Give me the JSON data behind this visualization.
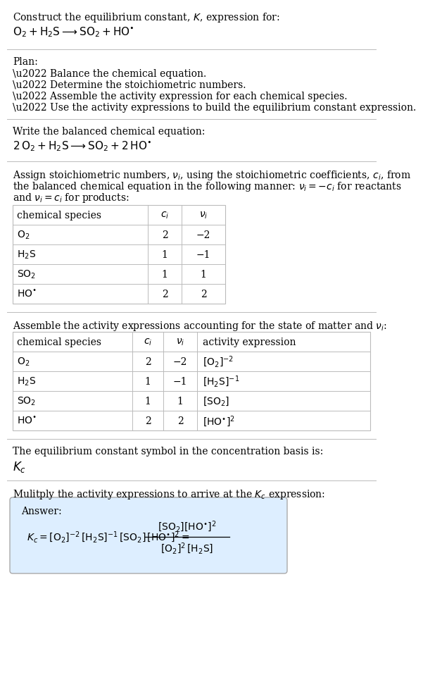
{
  "title_line1": "Construct the equilibrium constant, $K$, expression for:",
  "title_line2": "$\\mathrm{O_2 + H_2S \\longrightarrow SO_2 + HO^{\\bullet}}$",
  "plan_header": "Plan:",
  "plan_items": [
    "\\u2022 Balance the chemical equation.",
    "\\u2022 Determine the stoichiometric numbers.",
    "\\u2022 Assemble the activity expression for each chemical species.",
    "\\u2022 Use the activity expressions to build the equilibrium constant expression."
  ],
  "balanced_header": "Write the balanced chemical equation:",
  "balanced_eq": "$\\mathrm{2\\,O_2 + H_2S \\longrightarrow SO_2 + 2\\,HO^{\\bullet}}$",
  "stoich_intro": "Assign stoichiometric numbers, $\\nu_i$, using the stoichiometric coefficients, $c_i$, from\nthe balanced chemical equation in the following manner: $\\nu_i = -c_i$ for reactants\nand $\\nu_i = c_i$ for products:",
  "table1_col0_header": "chemical species",
  "table1_col1_header": "$c_i$",
  "table1_col2_header": "$\\nu_i$",
  "table1_rows": [
    [
      "$\\mathrm{O_2}$",
      "2",
      "\\u22122"
    ],
    [
      "$\\mathrm{H_2S}$",
      "1",
      "\\u22121"
    ],
    [
      "$\\mathrm{SO_2}$",
      "1",
      "1"
    ],
    [
      "$\\mathrm{HO^{\\bullet}}$",
      "2",
      "2"
    ]
  ],
  "activity_header": "Assemble the activity expressions accounting for the state of matter and $\\nu_i$:",
  "table2_col0_header": "chemical species",
  "table2_col1_header": "$c_i$",
  "table2_col2_header": "$\\nu_i$",
  "table2_col3_header": "activity expression",
  "table2_rows": [
    [
      "$\\mathrm{O_2}$",
      "2",
      "\\u22122",
      "$[\\mathrm{O_2}]^{-2}$"
    ],
    [
      "$\\mathrm{H_2S}$",
      "1",
      "\\u22121",
      "$[\\mathrm{H_2S}]^{-1}$"
    ],
    [
      "$\\mathrm{SO_2}$",
      "1",
      "1",
      "$[\\mathrm{SO_2}]$"
    ],
    [
      "$\\mathrm{HO^{\\bullet}}$",
      "2",
      "2",
      "$[\\mathrm{HO^{\\bullet}}]^2$"
    ]
  ],
  "kc_header": "The equilibrium constant symbol in the concentration basis is:",
  "kc_symbol": "$K_c$",
  "multiply_header": "Mulitply the activity expressions to arrive at the $K_c$ expression:",
  "answer_label": "Answer:",
  "answer_expr": "$K_c = [\\mathrm{O_2}]^{-2}\\,[\\mathrm{H_2S}]^{-1}\\,[\\mathrm{SO_2}]\\,[\\mathrm{HO^{\\bullet}}]^2 = $",
  "frac_num": "$[\\mathrm{SO_2}][\\mathrm{HO^{\\bullet}}]^2$",
  "frac_den": "$[\\mathrm{O_2}]^2\\,[\\mathrm{H_2S}]$",
  "bg_color": "#ffffff",
  "answer_bg": "#ddeeff",
  "line_color": "#bbbbbb",
  "text_color": "#000000"
}
